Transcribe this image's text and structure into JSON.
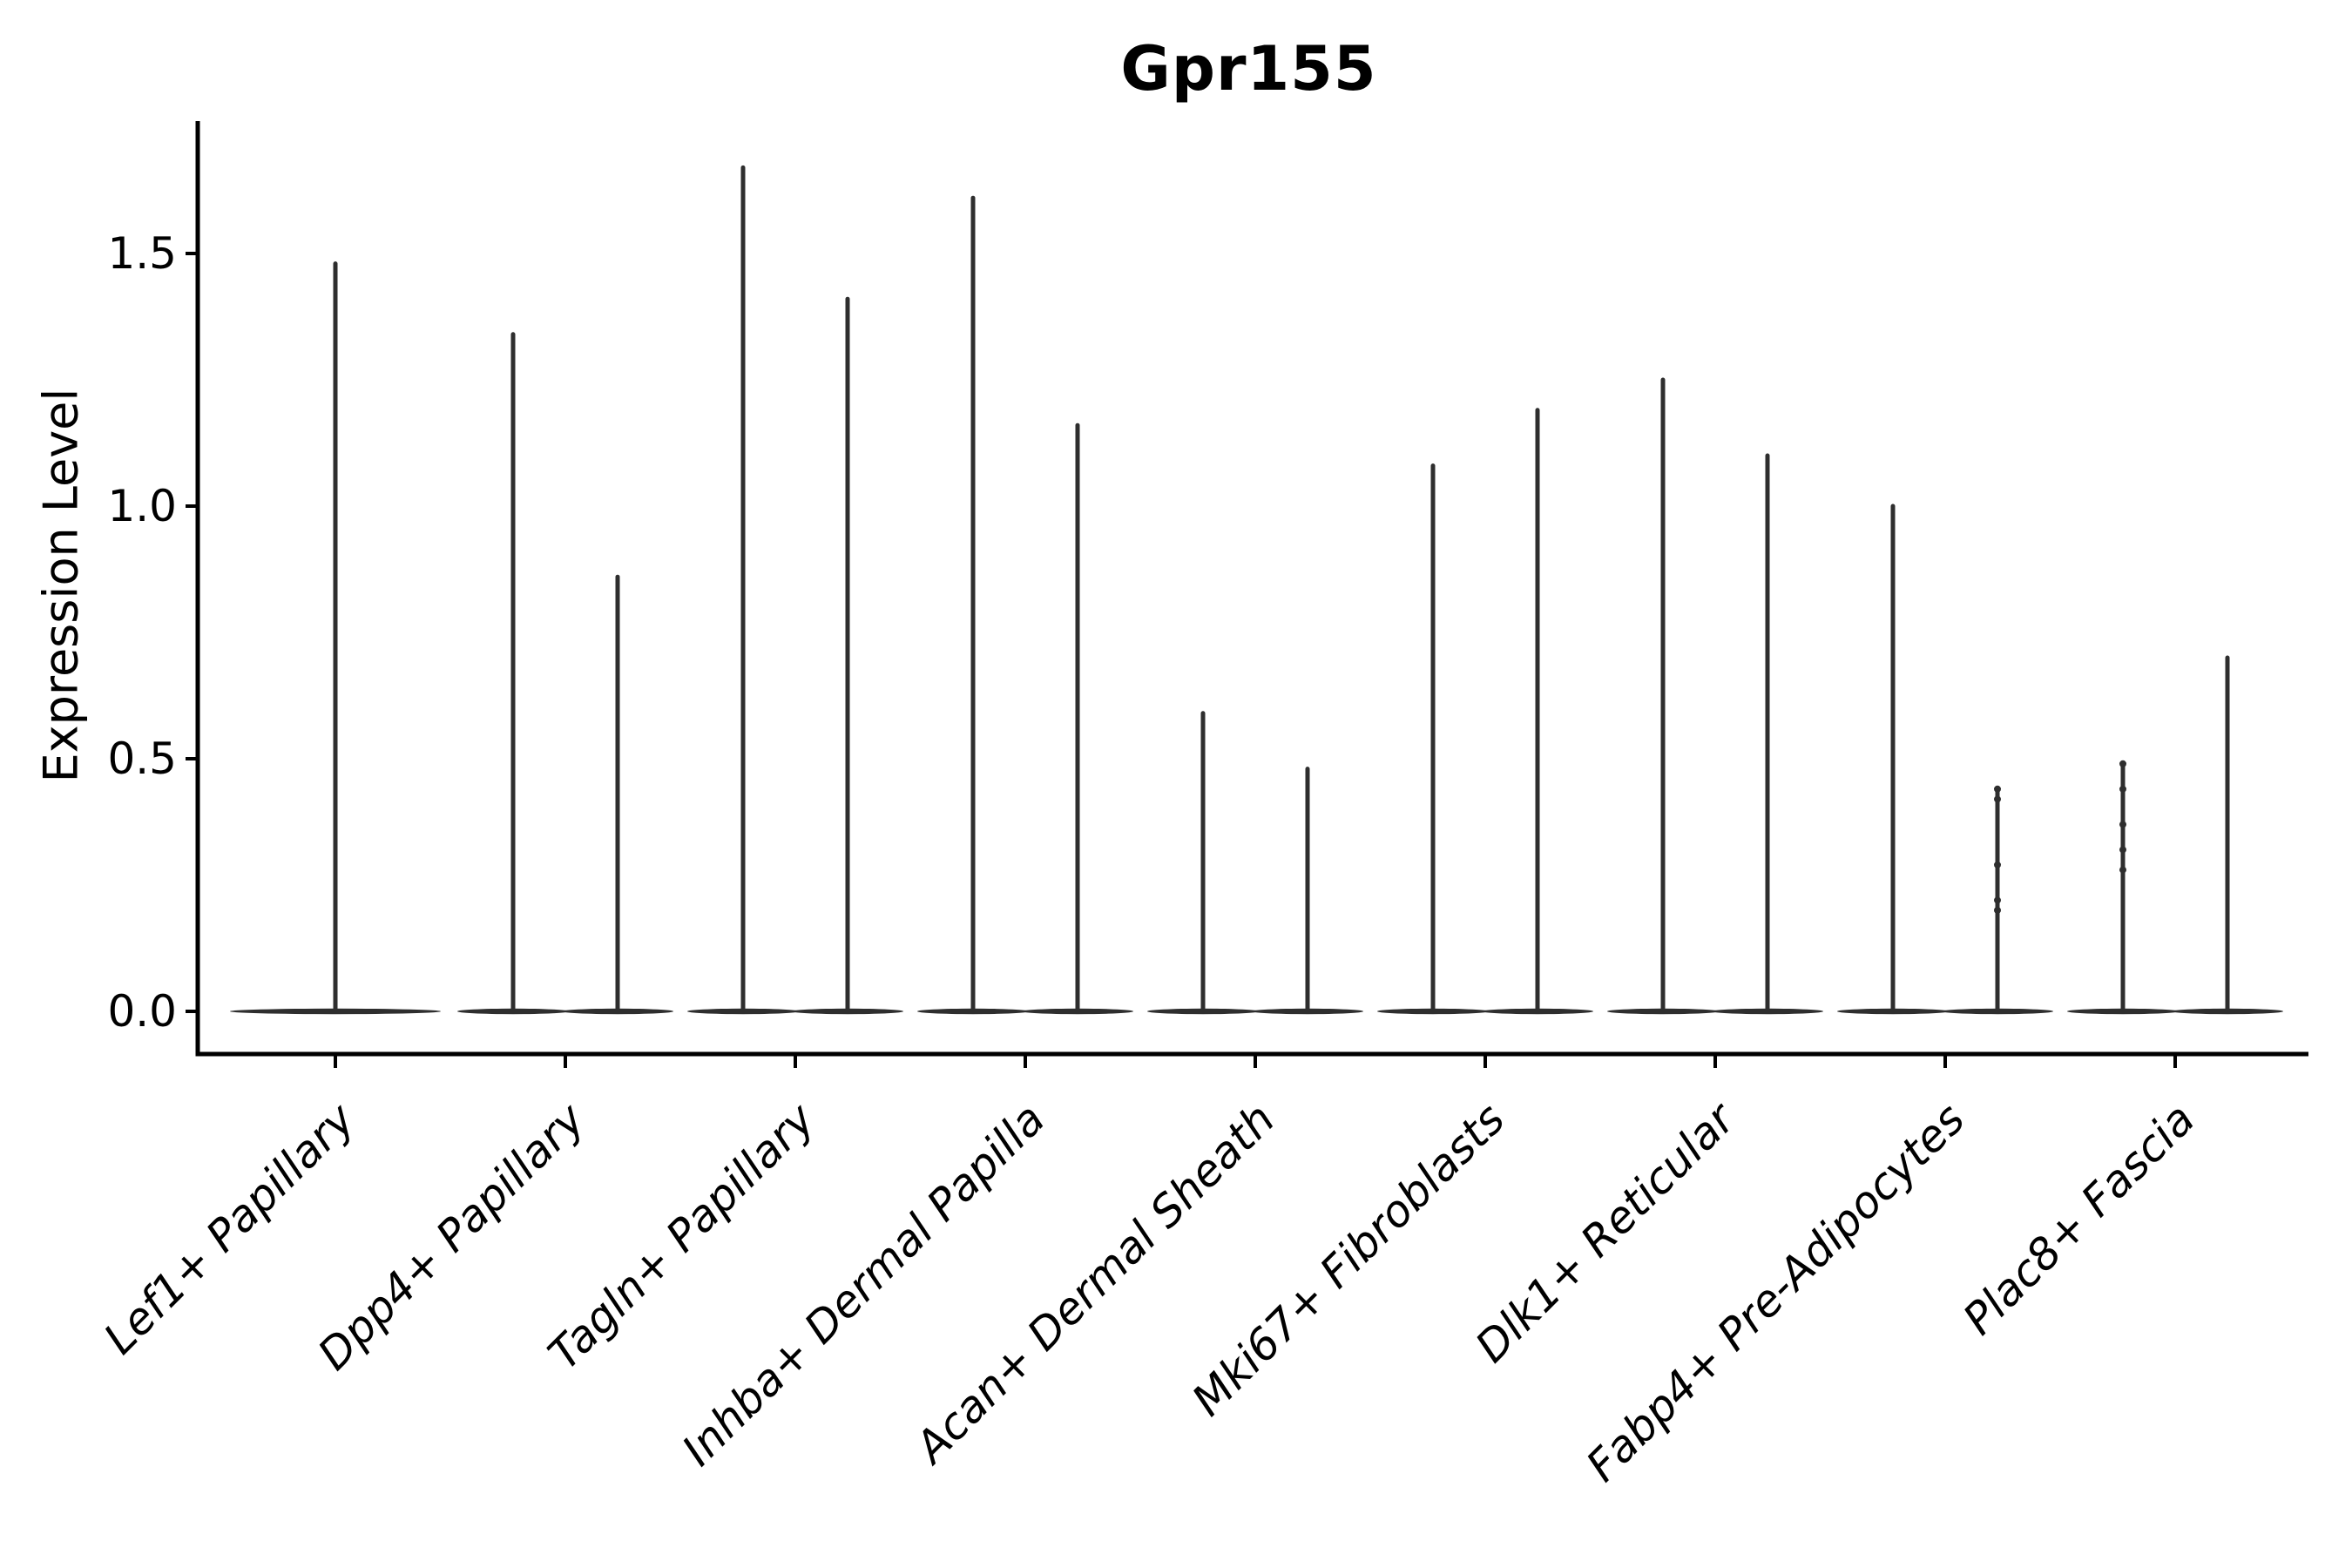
{
  "figure": {
    "background": "#ffffff"
  },
  "chart_data": {
    "type": "violin",
    "title": "Gpr155",
    "ylabel": "Expression Level",
    "xlabel": "",
    "grid": false,
    "legend": "none",
    "ylim": [
      -0.085,
      1.76
    ],
    "ytick_labels": [
      "0.0",
      "0.5",
      "1.0",
      "1.5"
    ],
    "ytick_values": [
      0.0,
      0.5,
      1.0,
      1.5
    ],
    "colors": {
      "axis": "#000000",
      "violin": "#2e2e2e"
    },
    "categories": [
      {
        "label": "Lef1+ Papillary",
        "violins": [
          {
            "pos": "full",
            "max": 1.48
          }
        ]
      },
      {
        "label": "Dpp4+ Papillary",
        "violins": [
          {
            "pos": "left",
            "max": 1.34
          },
          {
            "pos": "right",
            "max": 0.86
          }
        ]
      },
      {
        "label": "Tagln+ Papillary",
        "violins": [
          {
            "pos": "left",
            "max": 1.67
          },
          {
            "pos": "right",
            "max": 1.41
          }
        ]
      },
      {
        "label": "Inhba+ Dermal Papilla",
        "violins": [
          {
            "pos": "left",
            "max": 1.61
          },
          {
            "pos": "right",
            "max": 1.16
          }
        ]
      },
      {
        "label": "Acan+ Dermal Sheath",
        "violins": [
          {
            "pos": "left",
            "max": 0.59
          },
          {
            "pos": "right",
            "max": 0.48
          }
        ]
      },
      {
        "label": "Mki67+ Fibroblasts",
        "violins": [
          {
            "pos": "left",
            "max": 1.08
          },
          {
            "pos": "right",
            "max": 1.19
          }
        ]
      },
      {
        "label": "Dlk1+ Reticular",
        "violins": [
          {
            "pos": "left",
            "max": 1.25
          },
          {
            "pos": "right",
            "max": 1.1
          }
        ]
      },
      {
        "label": "Fabp4+ Pre-Adipocytes",
        "violins": [
          {
            "pos": "left",
            "max": 1.0
          },
          {
            "pos": "right",
            "max": 0.44,
            "points": [
              0.44,
              0.42,
              0.29,
              0.22,
              0.2
            ]
          }
        ]
      },
      {
        "label": "Plac8+ Fascia",
        "violins": [
          {
            "pos": "left",
            "max": 0.49,
            "points": [
              0.49,
              0.44,
              0.37,
              0.32,
              0.28
            ]
          },
          {
            "pos": "right",
            "max": 0.7
          }
        ]
      }
    ]
  }
}
